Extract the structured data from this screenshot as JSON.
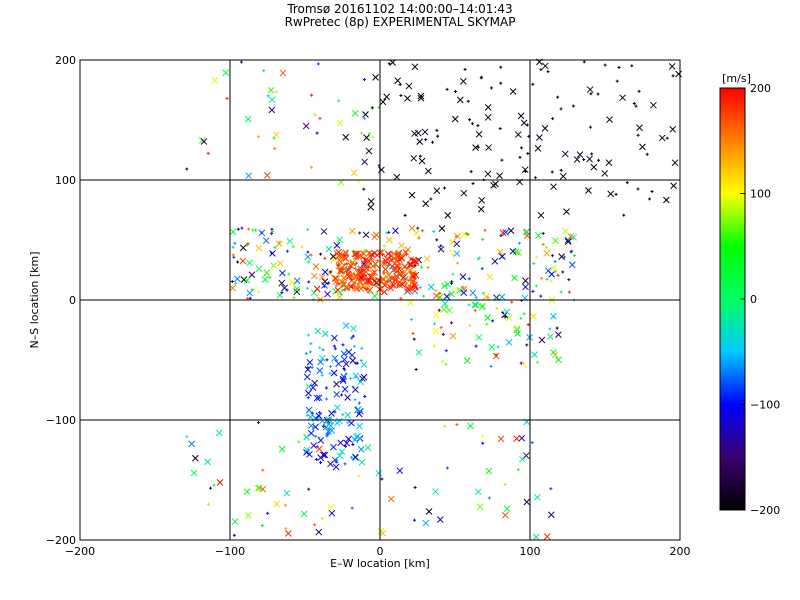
{
  "chart_data": {
    "type": "scatter",
    "title": "Tromsø 20161102 14:00:00–14:01:43",
    "subtitle": "RwPretec (8p) EXPERIMENTAL SKYMAP",
    "xlabel": "E–W location [km]",
    "ylabel": "N–S location [km]",
    "xlim": [
      -200,
      200
    ],
    "ylim": [
      -200,
      200
    ],
    "xticks": [
      -200,
      -100,
      0,
      100,
      200
    ],
    "yticks": [
      -200,
      -100,
      0,
      100,
      200
    ],
    "grid": "lines at -100, 0, 100 on both axes",
    "marker_types": [
      "x (large)",
      "+ (small)"
    ],
    "colorbar": {
      "label": "[m/s]",
      "min": -200,
      "max": 200,
      "ticks": [
        200,
        100,
        0,
        -100,
        -200
      ],
      "colormap": [
        "#000000",
        "#3a0070",
        "#0000ff",
        "#00c8ff",
        "#00ff60",
        "#00ff00",
        "#ffff00",
        "#ff8000",
        "#ff0000"
      ]
    },
    "clusters": [
      {
        "name": "northeast black cloud",
        "x_range": [
          -10,
          200
        ],
        "y_range": [
          70,
          200
        ],
        "velocity_range": [
          -200,
          -180
        ],
        "density": "high"
      },
      {
        "name": "northwest scattered",
        "x_range": [
          -130,
          0
        ],
        "y_range": [
          90,
          200
        ],
        "velocity_range": [
          -200,
          200
        ],
        "density": "low"
      },
      {
        "name": "central band",
        "x_range": [
          -100,
          130
        ],
        "y_range": [
          0,
          60
        ],
        "velocity_range": [
          -200,
          200
        ],
        "density": "very high"
      },
      {
        "name": "red core",
        "x_range": [
          -30,
          25
        ],
        "y_range": [
          8,
          40
        ],
        "velocity_range": [
          150,
          200
        ],
        "density": "very high"
      },
      {
        "name": "south column (blue/cyan)",
        "x_range": [
          -50,
          -10
        ],
        "y_range": [
          -140,
          -20
        ],
        "velocity_range": [
          -130,
          -20
        ],
        "density": "high"
      },
      {
        "name": "southeast scattered",
        "x_range": [
          -130,
          120
        ],
        "y_range": [
          -200,
          -100
        ],
        "velocity_range": [
          -200,
          200
        ],
        "density": "medium"
      },
      {
        "name": "east arm",
        "x_range": [
          20,
          120
        ],
        "y_range": [
          -60,
          10
        ],
        "velocity_range": [
          -200,
          200
        ],
        "density": "medium"
      }
    ]
  }
}
